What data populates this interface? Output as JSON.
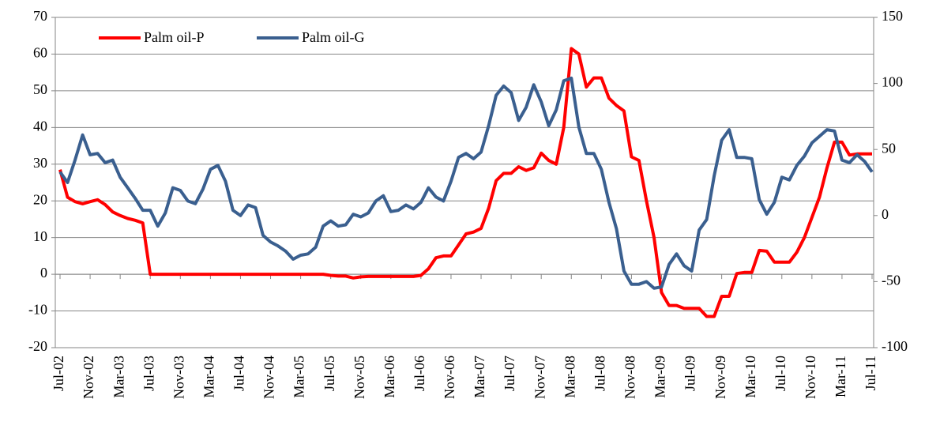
{
  "chart_data": {
    "type": "line",
    "categories": [
      "Jul-02",
      null,
      null,
      null,
      "Nov-02",
      null,
      null,
      null,
      "Mar-03",
      null,
      null,
      null,
      "Jul-03",
      null,
      null,
      null,
      "Nov-03",
      null,
      null,
      null,
      "Mar-04",
      null,
      null,
      null,
      "Jul-04",
      null,
      null,
      null,
      "Nov-04",
      null,
      null,
      null,
      "Mar-05",
      null,
      null,
      null,
      "Jul-05",
      null,
      null,
      null,
      "Nov-05",
      null,
      null,
      null,
      "Mar-06",
      null,
      null,
      null,
      "Jul-06",
      null,
      null,
      null,
      "Nov-06",
      null,
      null,
      null,
      "Mar-07",
      null,
      null,
      null,
      "Jul-07",
      null,
      null,
      null,
      "Nov-07",
      null,
      null,
      null,
      "Mar-08",
      null,
      null,
      null,
      "Jul-08",
      null,
      null,
      null,
      "Nov-08",
      null,
      null,
      null,
      "Mar-09",
      null,
      null,
      null,
      "Jul-09",
      null,
      null,
      null,
      "Nov-09",
      null,
      null,
      null,
      "Mar-10",
      null,
      null,
      null,
      "Jul-10",
      null,
      null,
      null,
      "Nov-10",
      null,
      null,
      null,
      "Mar-11",
      null,
      null,
      null,
      "Jul-11"
    ],
    "series": [
      {
        "name": "Palm oil-P",
        "color": "#ff0000",
        "axis": "y",
        "values": [
          28.5,
          21,
          19.8,
          19.2,
          19.8,
          20.3,
          19,
          17,
          16,
          15.2,
          14.7,
          14,
          0,
          0,
          0,
          0,
          0,
          0,
          0,
          0,
          0,
          0,
          0,
          0,
          0,
          0,
          0,
          0,
          0,
          0,
          0,
          0,
          0,
          0,
          0,
          0,
          -0.3,
          -0.5,
          -0.5,
          -1,
          -0.7,
          -0.6,
          -0.6,
          -0.6,
          -0.6,
          -0.6,
          -0.6,
          -0.6,
          -0.3,
          1.5,
          4.5,
          5,
          5,
          8,
          11,
          11.5,
          12.5,
          18,
          25.5,
          27.5,
          27.5,
          29.3,
          28.3,
          29,
          33,
          31,
          30,
          40,
          61.5,
          60,
          51,
          53.5,
          53.5,
          48,
          46,
          44.5,
          32,
          31,
          20,
          10,
          -5,
          -8.5,
          -8.5,
          -9.3,
          -9.3,
          -9.3,
          -11.5,
          -11.5,
          -6,
          -6,
          0.2,
          0.5,
          0.5,
          6.5,
          6.3,
          3.3,
          3.3,
          3.3,
          6,
          10,
          15.5,
          21,
          29,
          36,
          36,
          32.5,
          32.8,
          32.8,
          32.8
        ]
      },
      {
        "name": "Palm oil-G",
        "color": "#3a5f8f",
        "axis": "y2",
        "values": [
          33,
          25,
          42,
          61,
          46,
          47,
          40,
          42,
          29,
          21,
          13,
          4,
          4,
          -8,
          2,
          21,
          19,
          11,
          9,
          20,
          35,
          38,
          26,
          4,
          0,
          8,
          6,
          -15,
          -20,
          -23,
          -27,
          -33,
          -30,
          -29,
          -24,
          -8,
          -4,
          -8,
          -7,
          1,
          -1,
          2,
          11,
          15,
          3,
          4,
          8,
          5,
          10,
          21,
          14,
          11,
          26,
          44,
          47,
          43,
          48,
          68,
          91,
          98,
          93,
          72,
          82,
          99,
          86,
          68,
          80,
          102,
          104,
          67,
          47,
          47,
          35,
          10,
          -10,
          -42,
          -52,
          -52,
          -50,
          -55,
          -54,
          -37,
          -29,
          -38,
          -42,
          -11,
          -3,
          30,
          57,
          65,
          44,
          44,
          43,
          12,
          1,
          10,
          29,
          27,
          38,
          45,
          55,
          60,
          65,
          64,
          42,
          40,
          46,
          41,
          33
        ]
      }
    ],
    "ylim": [
      -20,
      70
    ],
    "yticks": [
      -20,
      -10,
      0,
      10,
      20,
      30,
      40,
      50,
      60,
      70
    ],
    "y2lim": [
      -100,
      150
    ],
    "y2ticks": [
      -100,
      -50,
      0,
      50,
      100,
      150
    ],
    "grid": true,
    "legend": "top-left"
  }
}
